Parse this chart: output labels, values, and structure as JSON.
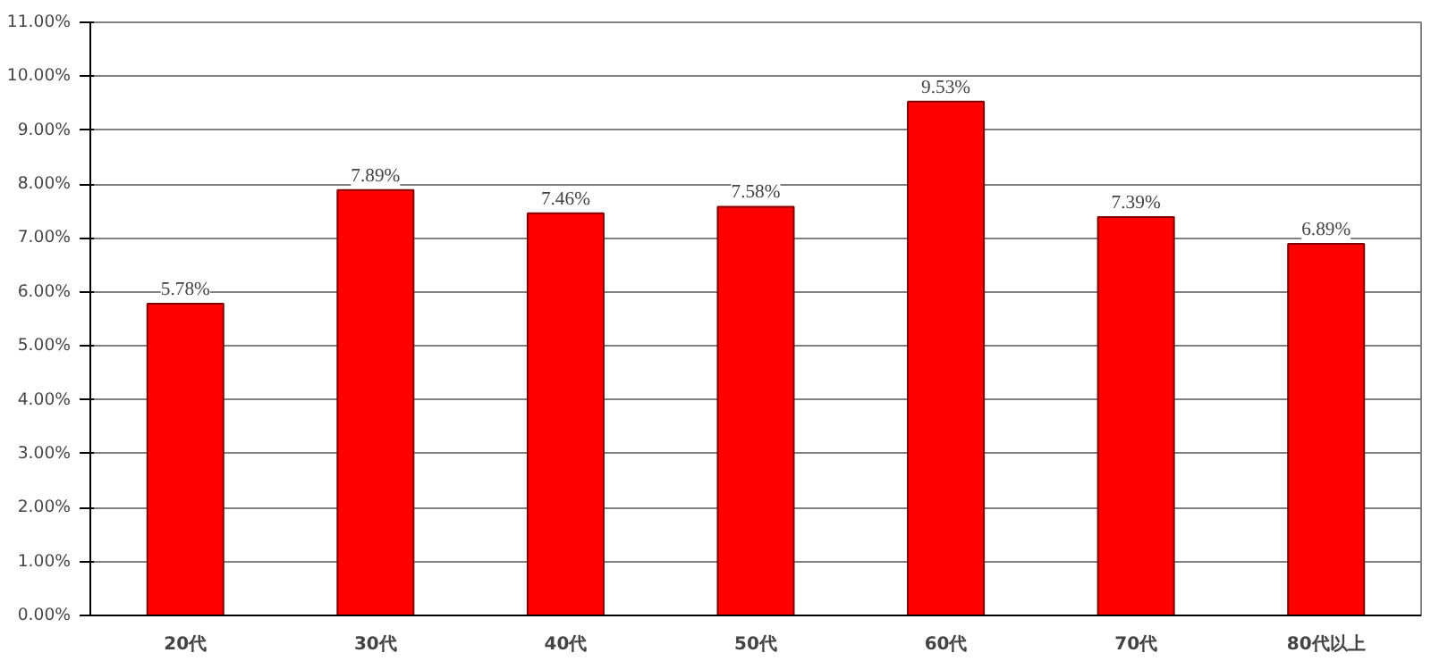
{
  "chart_data": {
    "type": "bar",
    "categories": [
      "20代",
      "30代",
      "40代",
      "50代",
      "60代",
      "70代",
      "80代以上"
    ],
    "values": [
      5.78,
      7.89,
      7.46,
      7.58,
      9.53,
      7.39,
      6.89
    ],
    "value_labels": [
      "5.78%",
      "7.89%",
      "7.46%",
      "7.58%",
      "9.53%",
      "7.39%",
      "6.89%"
    ],
    "color": "#ff0000",
    "ylim": [
      0,
      11
    ],
    "yticks": [
      {
        "value": 0,
        "label": "0.00%"
      },
      {
        "value": 1,
        "label": "1.00%"
      },
      {
        "value": 2,
        "label": "2.00%"
      },
      {
        "value": 3,
        "label": "3.00%"
      },
      {
        "value": 4,
        "label": "4.00%"
      },
      {
        "value": 5,
        "label": "5.00%"
      },
      {
        "value": 6,
        "label": "6.00%"
      },
      {
        "value": 7,
        "label": "7.00%"
      },
      {
        "value": 8,
        "label": "8.00%"
      },
      {
        "value": 9,
        "label": "9.00%"
      },
      {
        "value": 10,
        "label": "10.00%"
      },
      {
        "value": 11,
        "label": "11.00%"
      }
    ],
    "grid": "y"
  }
}
